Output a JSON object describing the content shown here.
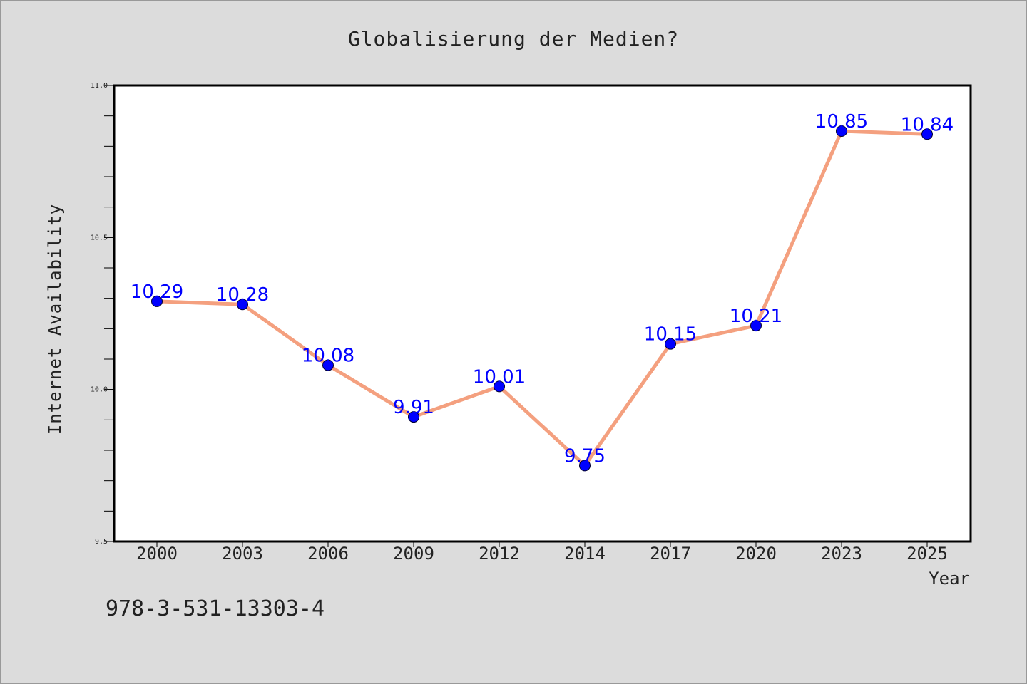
{
  "chart_data": {
    "type": "line",
    "title": "Globalisierung der Medien?",
    "xlabel": "Year",
    "ylabel": "Internet Availability",
    "categories": [
      "2000",
      "2003",
      "2006",
      "2009",
      "2012",
      "2014",
      "2017",
      "2020",
      "2023",
      "2025"
    ],
    "series": [
      {
        "values": [
          10.29,
          10.28,
          10.08,
          9.91,
          10.01,
          9.75,
          10.15,
          10.21,
          10.85,
          10.84
        ],
        "data_labels": [
          "10.29",
          "10.28",
          "10.08",
          "9.91",
          "10.01",
          "9.75",
          "10.15",
          "10.21",
          "10.85",
          "10.84"
        ],
        "line_color": "#f4a07f",
        "marker_color": "#0000ff",
        "label_color": "#0000ff"
      }
    ],
    "ylim": [
      9.5,
      11.0
    ],
    "yticks": [
      "9.5",
      "10.0",
      "10.5",
      "11.0"
    ],
    "grid": false,
    "annotation": "978-3-531-13303-4",
    "colors": {
      "background": "#dcdcdc",
      "plot_background": "#ffffff",
      "axis": "#000000",
      "text": "#222222"
    }
  }
}
